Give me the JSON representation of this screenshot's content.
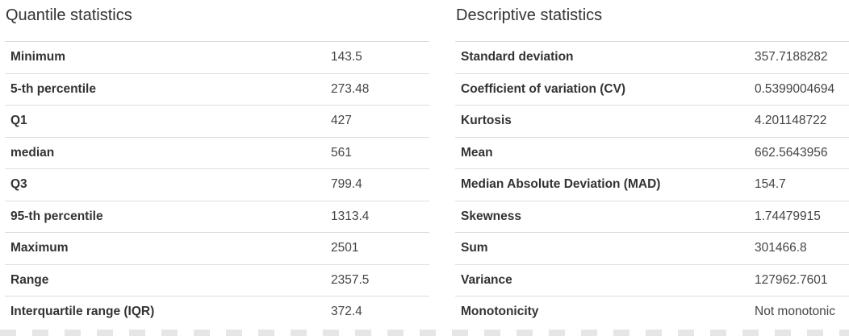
{
  "quantile": {
    "title": "Quantile statistics",
    "rows": [
      {
        "label": "Minimum",
        "value": "143.5"
      },
      {
        "label": "5-th percentile",
        "value": "273.48"
      },
      {
        "label": "Q1",
        "value": "427"
      },
      {
        "label": "median",
        "value": "561"
      },
      {
        "label": "Q3",
        "value": "799.4"
      },
      {
        "label": "95-th percentile",
        "value": "1313.4"
      },
      {
        "label": "Maximum",
        "value": "2501"
      },
      {
        "label": "Range",
        "value": "2357.5"
      },
      {
        "label": "Interquartile range (IQR)",
        "value": "372.4"
      }
    ]
  },
  "descriptive": {
    "title": "Descriptive statistics",
    "rows": [
      {
        "label": "Standard deviation",
        "value": "357.7188282"
      },
      {
        "label": "Coefficient of variation (CV)",
        "value": "0.5399004694"
      },
      {
        "label": "Kurtosis",
        "value": "4.201148722"
      },
      {
        "label": "Mean",
        "value": "662.5643956"
      },
      {
        "label": "Median Absolute Deviation (MAD)",
        "value": "154.7"
      },
      {
        "label": "Skewness",
        "value": "1.74479915"
      },
      {
        "label": "Sum",
        "value": "301466.8"
      },
      {
        "label": "Variance",
        "value": "127962.7601"
      },
      {
        "label": "Monotonicity",
        "value": "Not monotonic"
      }
    ]
  }
}
